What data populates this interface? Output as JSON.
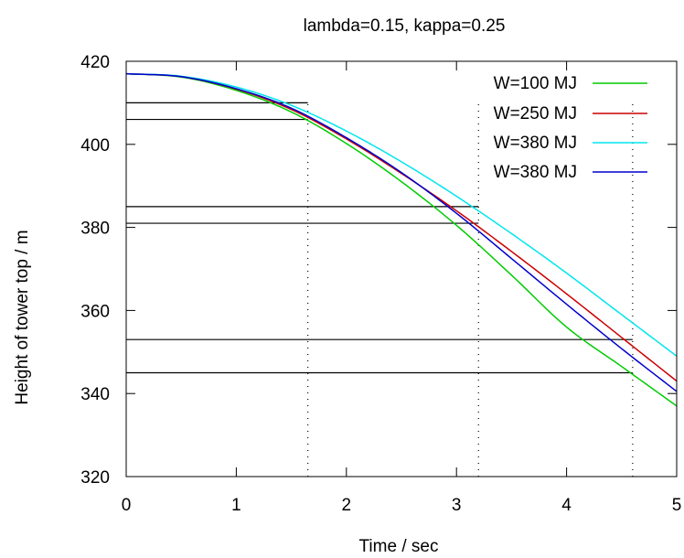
{
  "chart_data": {
    "type": "line",
    "title": "lambda=0.15, kappa=0.25",
    "xlabel": "Time / sec",
    "ylabel": "Height of tower top / m",
    "xlim": [
      0,
      5
    ],
    "ylim": [
      320,
      420
    ],
    "xticks": [
      "0",
      "1",
      "2",
      "3",
      "4",
      "5"
    ],
    "yticks": [
      "320",
      "340",
      "360",
      "380",
      "400",
      "420"
    ],
    "grid": false,
    "legend_position": "top-right",
    "series": [
      {
        "name": "W=100 MJ",
        "color": "#00cc00",
        "x": [
          0,
          0.5,
          1.0,
          1.5,
          2.0,
          2.5,
          3.0,
          3.5,
          4.0,
          4.5,
          5.0
        ],
        "y": [
          417.0,
          416.2,
          413.0,
          407.8,
          400.2,
          391.0,
          380.5,
          368.5,
          356.0,
          346.5,
          337.0
        ]
      },
      {
        "name": "W=250 MJ",
        "color": "#cc0000",
        "x": [
          0,
          0.5,
          1.0,
          1.5,
          2.0,
          2.5,
          3.0,
          3.5,
          4.0,
          4.5,
          5.0
        ],
        "y": [
          417.0,
          416.3,
          413.3,
          408.4,
          401.3,
          393.0,
          384.0,
          374.2,
          364.0,
          353.5,
          343.0
        ]
      },
      {
        "name": "W=380 MJ",
        "color": "#00e5ee",
        "x": [
          0,
          0.5,
          1.0,
          1.5,
          2.0,
          2.5,
          3.0,
          3.5,
          4.0,
          4.5,
          5.0
        ],
        "y": [
          417.0,
          416.4,
          413.8,
          409.4,
          403.2,
          395.8,
          387.5,
          378.5,
          369.0,
          359.0,
          349.0
        ]
      },
      {
        "name": "W=380 MJ",
        "color": "#0000cc",
        "x": [
          0,
          0.5,
          1.0,
          1.5,
          2.0,
          2.5,
          3.0,
          3.5,
          4.0,
          4.5,
          5.0
        ],
        "y": [
          417.0,
          416.3,
          413.4,
          408.7,
          401.6,
          393.2,
          383.4,
          372.5,
          361.5,
          350.8,
          340.5
        ]
      }
    ],
    "annotations": {
      "horizontal_segments": [
        {
          "y": 410,
          "x_start": 0,
          "x_end": 1.65
        },
        {
          "y": 406,
          "x_start": 0,
          "x_end": 1.65
        },
        {
          "y": 385,
          "x_start": 0,
          "x_end": 3.2
        },
        {
          "y": 381,
          "x_start": 0,
          "x_end": 3.2
        },
        {
          "y": 353,
          "x_start": 0,
          "x_end": 4.6
        },
        {
          "y": 345,
          "x_start": 0,
          "x_end": 4.6
        }
      ],
      "vertical_dotted": [
        1.65,
        3.2,
        4.6
      ]
    }
  }
}
